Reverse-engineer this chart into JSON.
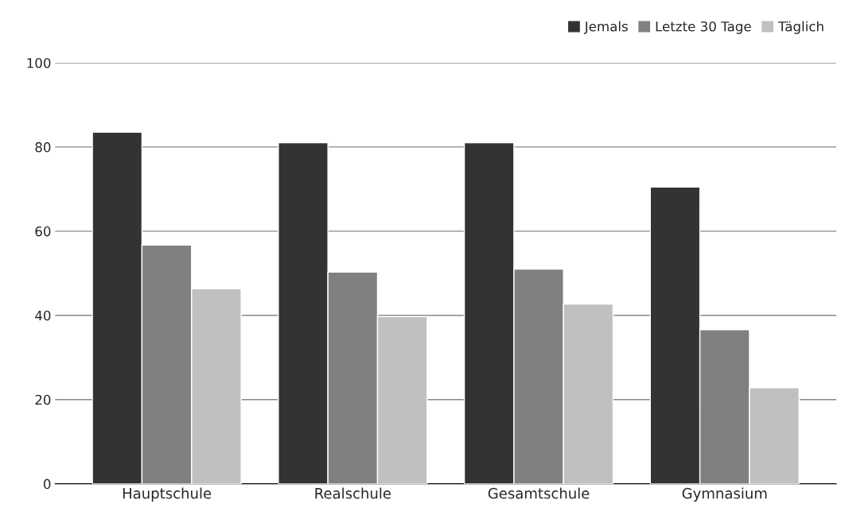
{
  "chart_data": {
    "type": "bar",
    "categories": [
      "Hauptschule",
      "Realschule",
      "Gesamtschule",
      "Gymnasium"
    ],
    "series": [
      {
        "name": "Jemals",
        "color": "#333333",
        "values": [
          83.5,
          81,
          81,
          70.5
        ]
      },
      {
        "name": "Letzte 30 Tage",
        "color": "#808080",
        "values": [
          56.7,
          50.3,
          51,
          36.6
        ]
      },
      {
        "name": "Täglich",
        "color": "#c0c0c0",
        "values": [
          46.3,
          39.7,
          42.7,
          22.8
        ]
      }
    ],
    "ylim": [
      0,
      100
    ],
    "yticks": [
      0,
      20,
      40,
      60,
      80,
      100
    ],
    "grid": "y",
    "legend": "top right"
  }
}
